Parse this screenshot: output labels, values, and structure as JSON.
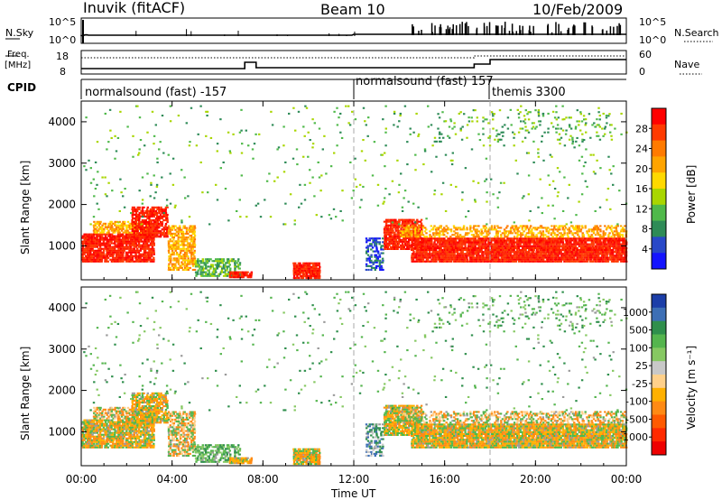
{
  "header": {
    "station": "Inuvik (fitACF)",
    "beam": "Beam 10",
    "date": "10/Feb/2009"
  },
  "strip_labels": {
    "nsky": "N.Sky",
    "freq_line1": "Freq.",
    "freq_line2": "[MHz]",
    "cpid": "CPID",
    "nsearch": "N.Search",
    "nave": "Nave"
  },
  "strip_ticks": {
    "nsky_top": "10^5",
    "nsky_bottom": "10^0",
    "freq_top": "18",
    "freq_bottom": "8",
    "nsearch_top": "10^5",
    "nsearch_bottom": "10^0",
    "nave_top": "60",
    "nave_bottom": "0"
  },
  "cpid_segments": [
    {
      "label": "normalsound (fast) -157",
      "start_h": 0
    },
    {
      "label": "normalsound (fast) 157",
      "start_h": 12
    },
    {
      "label": "themis 3300",
      "start_h": 18
    }
  ],
  "chart_data": [
    {
      "type": "heatmap",
      "name": "power",
      "ylabel": "Slant Range [km]",
      "xlabel": "",
      "xlim": [
        0,
        24
      ],
      "ylim": [
        180,
        4500
      ],
      "y_ticks": [
        "1000",
        "2000",
        "3000",
        "4000"
      ],
      "colorbar_label": "Power [dB]",
      "colorbar_ticks": [
        "28",
        "24",
        "20",
        "16",
        "12",
        "8",
        "4"
      ],
      "colorbar_colors": [
        "#ff0000",
        "#ff3a00",
        "#ff7a00",
        "#ffa400",
        "#ffd900",
        "#a9d600",
        "#4fb94a",
        "#2e8b57",
        "#2848c8",
        "#1414ff"
      ]
    },
    {
      "type": "heatmap",
      "name": "velocity",
      "ylabel": "Slant Range [km]",
      "xlabel": "Time UT",
      "xlim": [
        0,
        24
      ],
      "ylim": [
        180,
        4500
      ],
      "y_ticks": [
        "1000",
        "2000",
        "3000",
        "4000"
      ],
      "x_ticks": [
        "00:00",
        "04:00",
        "08:00",
        "12:00",
        "16:00",
        "20:00",
        "00:00"
      ],
      "colorbar_label": "Velocity [m s⁻¹]",
      "colorbar_ticks": [
        "1000",
        "500",
        "100",
        "25",
        "-25",
        "-100",
        "-500",
        "-1000"
      ],
      "colorbar_colors": [
        "#1c3ea8",
        "#3d6fb5",
        "#2f8f4c",
        "#55b54e",
        "#86c862",
        "#c8c8c8",
        "#ffd08a",
        "#ffb000",
        "#ff8a14",
        "#ff5a00",
        "#ff2a00",
        "#ee0000"
      ]
    }
  ],
  "colors": {
    "grid_dash": "#aaaaaa",
    "ground_scatter": "#9a9a9a"
  }
}
